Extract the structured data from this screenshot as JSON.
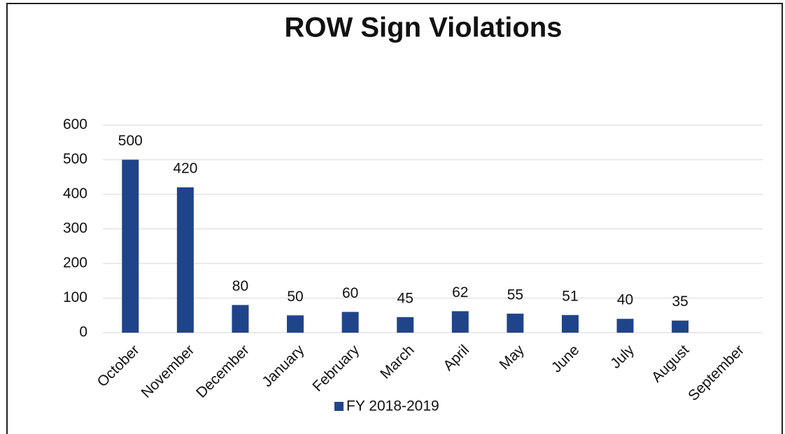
{
  "chart_data": {
    "type": "bar",
    "title": "ROW Sign Violations",
    "categories": [
      "October",
      "November",
      "December",
      "January",
      "February",
      "March",
      "April",
      "May",
      "June",
      "July",
      "August",
      "September"
    ],
    "series": [
      {
        "name": "FY 2018-2019",
        "color": "#20448a",
        "values": [
          500,
          420,
          80,
          50,
          60,
          45,
          62,
          55,
          51,
          40,
          35,
          null
        ]
      }
    ],
    "ylim": [
      0,
      600
    ],
    "yticks": [
      0,
      100,
      200,
      300,
      400,
      500,
      600
    ],
    "grid": true,
    "legend": "bottom"
  }
}
